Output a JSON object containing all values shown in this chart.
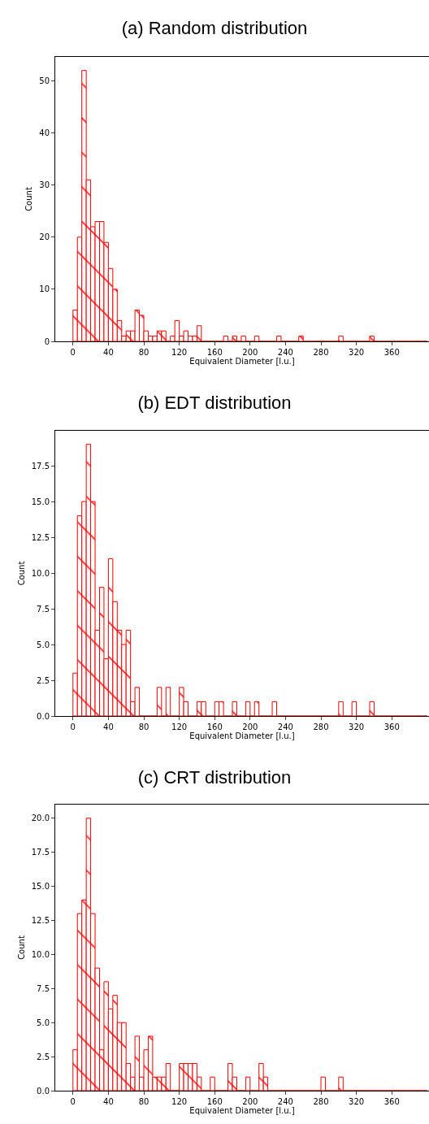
{
  "chart_data": [
    {
      "type": "histogram",
      "title": "(a) Random distribution",
      "xlabel": "Equivalent Diameter [l.u.]",
      "ylabel": "Count",
      "color": "#ff0000",
      "bins": [
        0,
        5,
        10,
        15,
        20,
        25,
        30,
        35,
        40,
        45,
        50,
        55,
        60,
        65,
        70,
        75,
        80,
        85,
        90,
        95,
        100,
        105,
        110,
        115,
        120,
        125,
        130,
        135,
        140,
        145,
        150,
        155,
        160,
        165,
        170,
        175,
        180,
        185,
        190,
        195,
        200,
        205,
        210,
        215,
        220,
        225,
        230,
        235,
        240,
        245,
        250,
        255,
        260,
        265,
        270,
        275,
        280,
        285,
        290,
        295,
        300,
        305,
        310,
        315,
        320,
        325,
        330,
        335,
        340,
        345,
        350,
        355,
        360,
        365,
        370,
        375,
        380,
        385,
        390,
        395,
        400
      ],
      "values": [
        6,
        20,
        52,
        31,
        22,
        23,
        23,
        19,
        14,
        10,
        4,
        1,
        2,
        2,
        6,
        5,
        2,
        1,
        1,
        2,
        2,
        0,
        1,
        4,
        1,
        2,
        1,
        1,
        3,
        0,
        0,
        0,
        0,
        0,
        1,
        0,
        1,
        0,
        1,
        0,
        0,
        1,
        0,
        0,
        0,
        0,
        1,
        0,
        0,
        0,
        0,
        1,
        0,
        0,
        0,
        0,
        0,
        0,
        0,
        0,
        1,
        0,
        0,
        0,
        0,
        0,
        0,
        1,
        0,
        0,
        0,
        0,
        0,
        0,
        0,
        0,
        0,
        0,
        0,
        0
      ],
      "xlim": [
        -20,
        402
      ],
      "xticks": [
        0,
        40,
        80,
        120,
        160,
        200,
        240,
        280,
        320,
        360
      ],
      "ylim": [
        0,
        54.6
      ],
      "yticks": [
        0,
        10,
        20,
        30,
        40,
        50
      ]
    },
    {
      "type": "histogram",
      "title": "(b) EDT distribution",
      "xlabel": "Equivalent Diameter [l.u.]",
      "ylabel": "Count",
      "color": "#ff0000",
      "bins": [
        0,
        5,
        10,
        15,
        20,
        25,
        30,
        35,
        40,
        45,
        50,
        55,
        60,
        65,
        70,
        75,
        80,
        85,
        90,
        95,
        100,
        105,
        110,
        115,
        120,
        125,
        130,
        135,
        140,
        145,
        150,
        155,
        160,
        165,
        170,
        175,
        180,
        185,
        190,
        195,
        200,
        205,
        210,
        215,
        220,
        225,
        230,
        235,
        240,
        245,
        250,
        255,
        260,
        265,
        270,
        275,
        280,
        285,
        290,
        295,
        300,
        305,
        310,
        315,
        320,
        325,
        330,
        335,
        340,
        345,
        350,
        355,
        360,
        365,
        370,
        375,
        380,
        385,
        390,
        395,
        400
      ],
      "values": [
        3,
        14,
        15,
        19,
        15,
        6,
        9,
        4,
        11,
        8,
        6,
        5,
        6,
        1,
        2,
        0,
        0,
        0,
        0,
        2,
        0,
        2,
        0,
        0,
        2,
        1,
        0,
        0,
        1,
        1,
        0,
        0,
        1,
        1,
        0,
        0,
        1,
        0,
        0,
        1,
        0,
        1,
        0,
        0,
        0,
        1,
        0,
        0,
        0,
        0,
        0,
        0,
        0,
        0,
        0,
        0,
        0,
        0,
        0,
        0,
        1,
        0,
        0,
        1,
        0,
        0,
        0,
        1,
        0,
        0,
        0,
        0,
        0,
        0,
        0,
        0,
        0,
        0,
        0,
        0
      ],
      "xlim": [
        -20,
        402
      ],
      "xticks": [
        0,
        40,
        80,
        120,
        160,
        200,
        240,
        280,
        320,
        360
      ],
      "ylim": [
        0,
        19.95
      ],
      "yticks": [
        {
          "value": 0,
          "label": "0.0"
        },
        {
          "value": 2.5,
          "label": "2.5"
        },
        {
          "value": 5,
          "label": "5.0"
        },
        {
          "value": 7.5,
          "label": "7.5"
        },
        {
          "value": 10,
          "label": "10.0"
        },
        {
          "value": 12.5,
          "label": "12.5"
        },
        {
          "value": 15,
          "label": "15.0"
        },
        {
          "value": 17.5,
          "label": "17.5"
        }
      ]
    },
    {
      "type": "histogram",
      "title": "(c) CRT distribution",
      "xlabel": "Equivalent Diameter [l.u.]",
      "ylabel": "Count",
      "color": "#ff0000",
      "bins": [
        0,
        5,
        10,
        15,
        20,
        25,
        30,
        35,
        40,
        45,
        50,
        55,
        60,
        65,
        70,
        75,
        80,
        85,
        90,
        95,
        100,
        105,
        110,
        115,
        120,
        125,
        130,
        135,
        140,
        145,
        150,
        155,
        160,
        165,
        170,
        175,
        180,
        185,
        190,
        195,
        200,
        205,
        210,
        215,
        220,
        225,
        230,
        235,
        240,
        245,
        250,
        255,
        260,
        265,
        270,
        275,
        280,
        285,
        290,
        295,
        300,
        305,
        310,
        315,
        320,
        325,
        330,
        335,
        340,
        345,
        350,
        355,
        360,
        365,
        370,
        375,
        380,
        385,
        390,
        395,
        400
      ],
      "values": [
        3,
        13,
        14,
        20,
        13,
        9,
        3,
        8,
        6,
        7,
        5,
        5,
        2,
        1,
        4,
        1,
        3,
        4,
        1,
        1,
        1,
        2,
        0,
        0,
        2,
        2,
        2,
        2,
        1,
        0,
        0,
        1,
        0,
        0,
        0,
        2,
        1,
        0,
        0,
        1,
        0,
        0,
        2,
        1,
        0,
        0,
        0,
        0,
        0,
        0,
        0,
        0,
        0,
        0,
        0,
        0,
        1,
        0,
        0,
        0,
        1,
        0,
        0,
        0,
        0,
        0,
        0,
        0,
        0,
        0,
        0,
        0,
        0,
        0,
        0,
        0,
        0,
        0,
        0,
        0
      ],
      "xlim": [
        -20,
        402
      ],
      "xticks": [
        0,
        40,
        80,
        120,
        160,
        200,
        240,
        280,
        320,
        360
      ],
      "ylim": [
        0,
        21
      ],
      "yticks": [
        {
          "value": 0,
          "label": "0.0"
        },
        {
          "value": 2.5,
          "label": "2.5"
        },
        {
          "value": 5,
          "label": "5.0"
        },
        {
          "value": 7.5,
          "label": "7.5"
        },
        {
          "value": 10,
          "label": "10.0"
        },
        {
          "value": 12.5,
          "label": "12.5"
        },
        {
          "value": 15,
          "label": "15.0"
        },
        {
          "value": 17.5,
          "label": "17.5"
        },
        {
          "value": 20,
          "label": "20.0"
        }
      ]
    }
  ]
}
